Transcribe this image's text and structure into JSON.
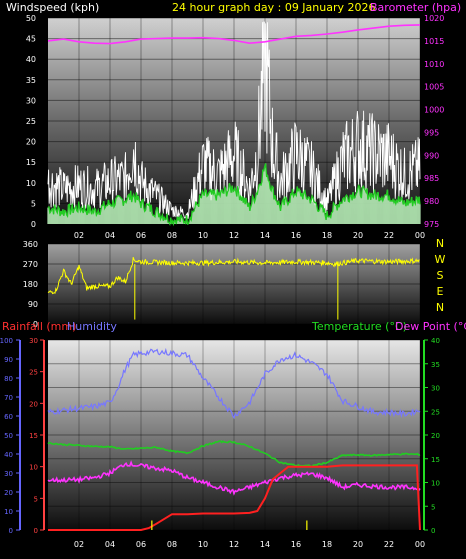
{
  "header": {
    "wind_label": "Windspeed (kph)",
    "title": "24 hour graph day : 09 January 2026",
    "baro_label": "Barometer (hpa)"
  },
  "lower_header": {
    "rain_label": "Rainfall (mm)",
    "humidity_label": "Humidity",
    "temp_label": "Temperature (°C)",
    "dew_label": "Dew Point (°C)"
  },
  "colors": {
    "wind_label": "#ffffff",
    "title": "#ffff00",
    "baro": "#ff33ff",
    "wind_gust": "#ffffff",
    "wind_avg": "#22cc22",
    "direction": "#ffff00",
    "rain": "#ff2020",
    "humidity": "#7777ff",
    "temperature": "#22cc22",
    "dew": "#ff33ff",
    "humidity_axis": "#6666ff",
    "rain_axis": "#ff4040",
    "temp_axis": "#22dd22"
  },
  "chart_data": [
    {
      "type": "line",
      "id": "wind-baro",
      "x_ticks": [
        "02",
        "04",
        "06",
        "08",
        "10",
        "12",
        "14",
        "16",
        "18",
        "20",
        "22",
        "00"
      ],
      "x_range_hours": [
        0,
        24
      ],
      "y_left": {
        "label": "Windspeed (kph)",
        "range": [
          0,
          50
        ],
        "ticks": [
          0,
          5,
          10,
          15,
          20,
          25,
          30,
          35,
          40,
          45,
          50
        ]
      },
      "y_right": {
        "label": "Barometer (hpa)",
        "range": [
          975,
          1020
        ],
        "ticks": [
          975,
          980,
          985,
          990,
          995,
          1000,
          1005,
          1010,
          1015,
          1020
        ]
      },
      "series": [
        {
          "name": "Barometer (hpa)",
          "axis": "right",
          "x": [
            0,
            1,
            2,
            3,
            4,
            5,
            6,
            7,
            8,
            9,
            10,
            11,
            12,
            13,
            14,
            15,
            16,
            17,
            18,
            19,
            20,
            21,
            22,
            23,
            24
          ],
          "values": [
            1015,
            1015.4,
            1014.8,
            1014.5,
            1014.4,
            1014.8,
            1015.4,
            1015.5,
            1015.6,
            1015.6,
            1015.7,
            1015.5,
            1015.1,
            1014.5,
            1014.8,
            1015.4,
            1016,
            1016.2,
            1016.5,
            1016.9,
            1017.4,
            1017.8,
            1018.2,
            1018.4,
            1018.5
          ]
        },
        {
          "x": [
            0,
            1,
            2,
            3,
            4,
            5,
            5.5,
            6,
            7,
            8,
            9,
            10,
            11,
            12,
            13,
            13.5,
            14,
            14.5,
            15,
            16,
            17,
            18,
            19,
            20,
            21,
            22,
            23,
            24
          ],
          "values": [
            12,
            10,
            11,
            10,
            12,
            13,
            22,
            12,
            8,
            4,
            3,
            17,
            14,
            20,
            10,
            20,
            48,
            22,
            12,
            20,
            15,
            6,
            18,
            22,
            20,
            19,
            14,
            16
          ]
        },
        {
          "x": [
            0,
            1,
            2,
            3,
            4,
            5,
            5.5,
            6,
            7,
            8,
            9,
            10,
            11,
            12,
            13,
            13.5,
            14,
            14.5,
            15,
            16,
            17,
            18,
            19,
            20,
            21,
            22,
            23,
            24
          ],
          "values": [
            4,
            3,
            4,
            3,
            5,
            6,
            7,
            5,
            3,
            1,
            1,
            7,
            7,
            9,
            4,
            8,
            14,
            8,
            4,
            8,
            6,
            2,
            6,
            8,
            7,
            7,
            5,
            6
          ]
        }
      ]
    },
    {
      "type": "line",
      "id": "wind-direction",
      "x_range_hours": [
        0,
        24
      ],
      "y_left": {
        "range": [
          0,
          360
        ],
        "ticks": [
          0,
          90,
          180,
          270,
          360
        ]
      },
      "compass_labels": [
        "N",
        "W",
        "S",
        "E",
        "N"
      ],
      "series": [
        {
          "x": [
            0,
            0.5,
            1,
            1.5,
            2,
            2.5,
            3,
            4,
            4.5,
            5,
            5.5,
            6,
            8,
            10,
            12,
            14,
            16,
            18,
            18.5,
            19,
            20,
            22,
            24
          ],
          "values": [
            140,
            150,
            240,
            180,
            260,
            160,
            170,
            170,
            210,
            190,
            290,
            280,
            275,
            275,
            280,
            275,
            280,
            275,
            270,
            275,
            285,
            280,
            285
          ]
        }
      ]
    },
    {
      "type": "line",
      "id": "rain-humidity-temp",
      "x_ticks": [
        "02",
        "04",
        "06",
        "08",
        "10",
        "12",
        "14",
        "16",
        "18",
        "20",
        "22",
        "00"
      ],
      "x_range_hours": [
        0,
        24
      ],
      "y_humidity": {
        "label": "Humidity",
        "range": [
          0,
          100
        ],
        "ticks": [
          0,
          10,
          20,
          30,
          40,
          50,
          60,
          70,
          80,
          90,
          100
        ]
      },
      "y_rain": {
        "label": "Rainfall (mm)",
        "range": [
          0,
          30
        ],
        "ticks": [
          0,
          5,
          10,
          15,
          20,
          25,
          30
        ]
      },
      "y_temp": {
        "label": "Temperature (°C)",
        "range": [
          0,
          40
        ],
        "ticks": [
          0,
          5,
          10,
          15,
          20,
          25,
          30,
          35,
          40
        ]
      },
      "series": [
        {
          "name": "Humidity",
          "axis": "humidity",
          "x": [
            0,
            1,
            2,
            3,
            4,
            4.5,
            5,
            5.5,
            6,
            7,
            8,
            9,
            10,
            11,
            12,
            13,
            14,
            15,
            16,
            17,
            18,
            19,
            20,
            21,
            22,
            23,
            24
          ],
          "values": [
            62,
            63,
            64,
            65,
            67,
            75,
            85,
            92,
            93,
            94,
            93,
            92,
            80,
            70,
            60,
            67,
            82,
            90,
            92,
            88,
            82,
            68,
            65,
            62,
            62,
            61,
            63
          ]
        },
        {
          "name": "Rainfall (mm)",
          "axis": "rain",
          "x": [
            0,
            1,
            2,
            3,
            4,
            5,
            6,
            6.5,
            7,
            8,
            9,
            10,
            11,
            12,
            13,
            13.5,
            14,
            14.5,
            15,
            15.5,
            16,
            17,
            18,
            19,
            20,
            21,
            22,
            23,
            23.8,
            24
          ],
          "values": [
            0,
            0,
            0,
            0,
            0,
            0,
            0,
            0.3,
            1,
            2.5,
            2.5,
            2.6,
            2.6,
            2.6,
            2.7,
            3,
            5,
            8,
            9,
            10,
            10,
            10,
            10,
            10.2,
            10.2,
            10.2,
            10.2,
            10.2,
            10.2,
            0
          ]
        },
        {
          "name": "Temperature (°C)",
          "axis": "temp",
          "x": [
            0,
            1,
            2,
            3,
            4,
            5,
            6,
            7,
            8,
            9,
            10,
            11,
            12,
            13,
            14,
            15,
            16,
            17,
            18,
            19,
            20,
            21,
            22,
            23,
            24
          ],
          "values": [
            18.3,
            18,
            17.8,
            17.6,
            17.5,
            17,
            17.2,
            17.4,
            16.6,
            16.2,
            17.7,
            18.6,
            18.5,
            17.6,
            16.1,
            14.2,
            13.6,
            13.5,
            14.2,
            15.7,
            15.8,
            15.7,
            15.9,
            16,
            15.9
          ]
        },
        {
          "name": "Dew Point (°C)",
          "axis": "temp",
          "x": [
            0,
            1,
            2,
            3,
            4,
            5,
            6,
            7,
            8,
            9,
            10,
            11,
            12,
            13,
            14,
            15,
            16,
            17,
            18,
            19,
            20,
            21,
            22,
            23,
            24
          ],
          "values": [
            10.5,
            10.5,
            10.6,
            11,
            12,
            14,
            13.5,
            13,
            12.5,
            11,
            10,
            9,
            8,
            9,
            10,
            11,
            11.5,
            11.8,
            11,
            9,
            9.5,
            9.2,
            9,
            9,
            8.8
          ]
        }
      ],
      "markers_yellow_x": [
        6.7,
        16.7
      ]
    }
  ]
}
